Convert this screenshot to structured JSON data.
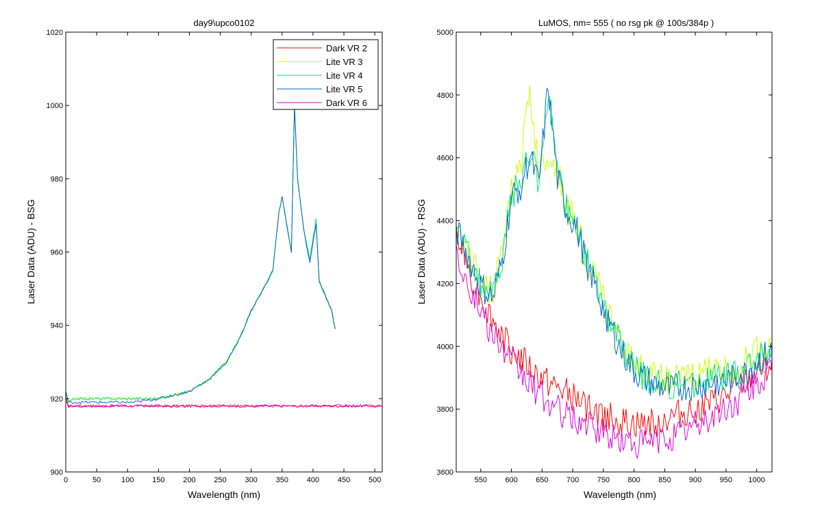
{
  "chart_data": [
    {
      "type": "line",
      "title": "day9\\upco0102",
      "xlabel": "Wavelength (nm)",
      "ylabel": "Laser Data (ADU) - BSG",
      "xlim": [
        0,
        512
      ],
      "ylim": [
        900,
        1020
      ],
      "xticks": [
        0,
        50,
        100,
        150,
        200,
        250,
        300,
        350,
        400,
        450,
        500
      ],
      "yticks": [
        900,
        920,
        940,
        960,
        980,
        1000,
        1020
      ],
      "legend_position": "top-right",
      "series": [
        {
          "name": "Dark VR 2",
          "color": "#ff0000",
          "x": [
            0,
            4,
            10,
            60,
            145,
            215,
            290,
            400,
            470,
            512
          ],
          "y": [
            920,
            918,
            918,
            918,
            918,
            918,
            918,
            918,
            918,
            918
          ]
        },
        {
          "name": "Lite VR 3",
          "color": "#ccff00",
          "x": [
            0,
            4,
            15,
            60,
            110,
            150,
            175,
            200,
            230,
            260,
            280,
            300,
            320,
            335,
            345,
            350,
            365,
            370,
            375,
            385,
            395,
            405,
            410,
            420,
            430,
            436
          ],
          "y": [
            922,
            919,
            920,
            920,
            920,
            920,
            921,
            922,
            925,
            930,
            936,
            944,
            950,
            955,
            971,
            975,
            960,
            1000,
            980,
            966,
            958,
            969,
            952,
            948,
            944,
            939
          ]
        },
        {
          "name": "Lite VR 4",
          "color": "#00e080",
          "x": [
            0,
            4,
            15,
            60,
            110,
            150,
            175,
            200,
            230,
            260,
            280,
            300,
            320,
            335,
            345,
            350,
            365,
            370,
            375,
            385,
            395,
            405,
            410,
            420,
            430,
            436
          ],
          "y": [
            922,
            919,
            920,
            920,
            920,
            920,
            921,
            922,
            925,
            930,
            936,
            944,
            950,
            955,
            971,
            975,
            960,
            1000,
            980,
            966,
            958,
            969,
            952,
            948,
            944,
            939
          ]
        },
        {
          "name": "Lite VR 5",
          "color": "#0066cc",
          "x": [
            0,
            4,
            15,
            60,
            110,
            150,
            175,
            200,
            230,
            260,
            280,
            300,
            320,
            335,
            345,
            350,
            365,
            370,
            375,
            385,
            395,
            405,
            410,
            420,
            430,
            436
          ],
          "y": [
            922,
            919,
            919,
            919,
            919,
            920,
            921,
            922,
            925,
            930,
            936,
            944,
            950,
            955,
            971,
            975,
            960,
            1000,
            980,
            966,
            957,
            968,
            952,
            948,
            944,
            939
          ]
        },
        {
          "name": "Dark VR 6",
          "color": "#dd00dd",
          "x": [
            0,
            4,
            10,
            60,
            145,
            215,
            290,
            400,
            470,
            512
          ],
          "y": [
            919,
            918,
            918,
            918,
            918,
            918,
            918,
            918,
            918,
            918
          ]
        }
      ]
    },
    {
      "type": "line",
      "title": "LuMOS, nm= 555 ( no rsg pk @ 100s/384p )",
      "xlabel": "Wavelength (nm)",
      "ylabel": "Laser Data (ADU) - RSG",
      "xlim": [
        510,
        1025
      ],
      "ylim": [
        3600,
        5000
      ],
      "xticks": [
        550,
        600,
        650,
        700,
        750,
        800,
        850,
        900,
        950,
        1000
      ],
      "yticks": [
        3600,
        3800,
        4000,
        4200,
        4400,
        4600,
        4800,
        5000
      ],
      "series": [
        {
          "name": "Dark VR 2",
          "color": "#ff0000",
          "x": [
            510,
            540,
            570,
            600,
            630,
            660,
            690,
            720,
            750,
            780,
            810,
            840,
            870,
            900,
            930,
            960,
            990,
            1025
          ],
          "y": [
            4350,
            4200,
            4080,
            3990,
            3930,
            3880,
            3850,
            3810,
            3780,
            3760,
            3750,
            3760,
            3780,
            3800,
            3820,
            3850,
            3900,
            3950
          ]
        },
        {
          "name": "Lite VR 3",
          "color": "#ccff00",
          "x": [
            510,
            530,
            550,
            570,
            585,
            600,
            615,
            630,
            645,
            660,
            675,
            690,
            705,
            720,
            740,
            760,
            780,
            800,
            820,
            840,
            860,
            880,
            900,
            920,
            940,
            960,
            980,
            1000,
            1025
          ],
          "y": [
            4380,
            4300,
            4210,
            4170,
            4300,
            4500,
            4560,
            4820,
            4560,
            4620,
            4560,
            4450,
            4400,
            4300,
            4200,
            4100,
            4000,
            3950,
            3920,
            3900,
            3890,
            3900,
            3910,
            3920,
            3920,
            3930,
            3950,
            3990,
            4000
          ]
        },
        {
          "name": "Lite VR 4",
          "color": "#00e080",
          "x": [
            510,
            530,
            550,
            570,
            585,
            600,
            615,
            630,
            645,
            660,
            675,
            690,
            705,
            720,
            740,
            760,
            780,
            800,
            820,
            840,
            860,
            880,
            900,
            920,
            940,
            960,
            980,
            1000,
            1025
          ],
          "y": [
            4380,
            4290,
            4200,
            4160,
            4280,
            4480,
            4520,
            4620,
            4520,
            4820,
            4540,
            4440,
            4390,
            4290,
            4180,
            4080,
            3990,
            3930,
            3900,
            3880,
            3870,
            3880,
            3880,
            3890,
            3900,
            3900,
            3920,
            3960,
            3990
          ]
        },
        {
          "name": "Lite VR 5",
          "color": "#0066cc",
          "x": [
            510,
            530,
            550,
            570,
            585,
            600,
            615,
            630,
            645,
            660,
            675,
            690,
            705,
            720,
            740,
            760,
            780,
            800,
            820,
            840,
            860,
            880,
            900,
            920,
            940,
            960,
            980,
            1000,
            1025
          ],
          "y": [
            4370,
            4280,
            4190,
            4150,
            4270,
            4470,
            4510,
            4600,
            4510,
            4830,
            4530,
            4430,
            4380,
            4280,
            4170,
            4070,
            3980,
            3920,
            3890,
            3870,
            3860,
            3870,
            3870,
            3880,
            3890,
            3890,
            3910,
            3950,
            3980
          ]
        },
        {
          "name": "Dark VR 6",
          "color": "#dd00dd",
          "x": [
            510,
            540,
            570,
            600,
            630,
            660,
            690,
            720,
            750,
            780,
            810,
            840,
            870,
            900,
            930,
            960,
            990,
            1025
          ],
          "y": [
            4300,
            4150,
            4030,
            3950,
            3880,
            3820,
            3780,
            3750,
            3720,
            3700,
            3690,
            3700,
            3720,
            3750,
            3780,
            3810,
            3860,
            3920
          ]
        }
      ]
    }
  ]
}
